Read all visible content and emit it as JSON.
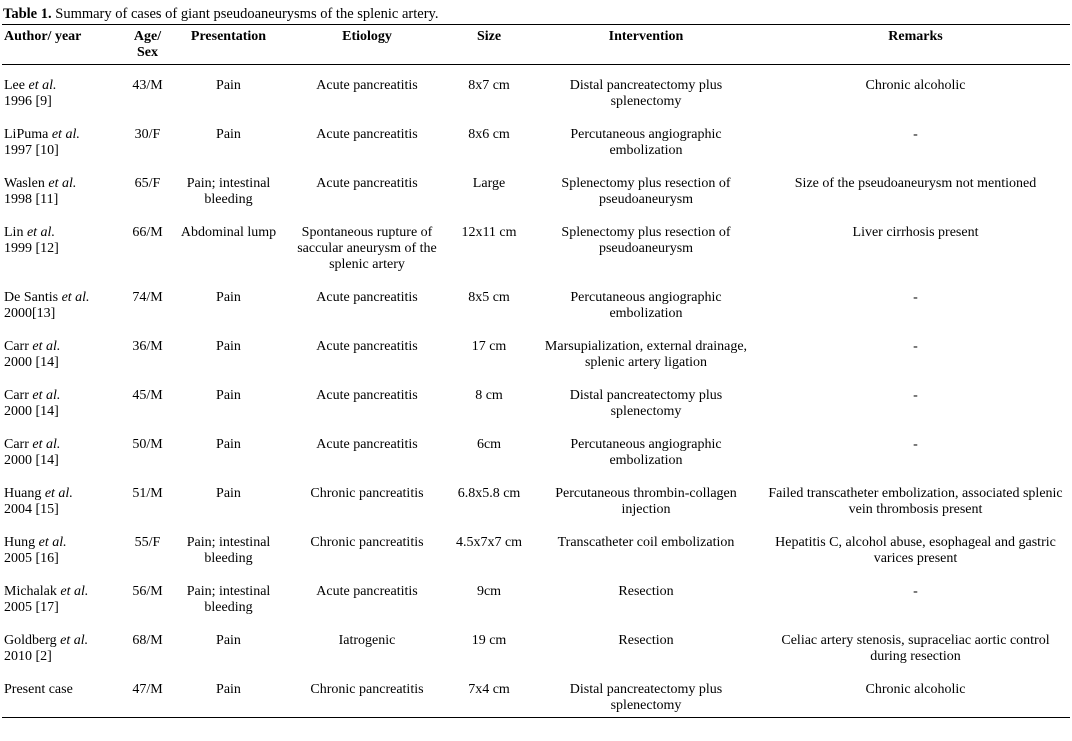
{
  "colors": {
    "text": "#000000",
    "background": "#ffffff",
    "rule": "#000000"
  },
  "title": {
    "label": "Table 1.",
    "text": "Summary of cases of giant pseudoaneurysms of the splenic artery."
  },
  "columns": [
    "Author/ year",
    "Age/ Sex",
    "Presentation",
    "Etiology",
    "Size",
    "Intervention",
    "Remarks"
  ],
  "rows": [
    {
      "author_name": "Lee",
      "author_etal": "et al.",
      "author_year": "1996 [9]",
      "age_sex": "43/M",
      "presentation": "Pain",
      "etiology": "Acute pancreatitis",
      "size": "8x7 cm",
      "intervention": "Distal pancreatectomy plus splenectomy",
      "remarks": "Chronic alcoholic"
    },
    {
      "author_name": "LiPuma",
      "author_etal": "et al.",
      "author_year": "1997 [10]",
      "age_sex": "30/F",
      "presentation": "Pain",
      "etiology": "Acute pancreatitis",
      "size": "8x6 cm",
      "intervention": "Percutaneous angiographic embolization",
      "remarks": "-"
    },
    {
      "author_name": "Waslen",
      "author_etal": "et al.",
      "author_year": "1998 [11]",
      "age_sex": "65/F",
      "presentation": "Pain; intestinal bleeding",
      "etiology": "Acute pancreatitis",
      "size": "Large",
      "intervention": "Splenectomy plus resection of pseudoaneurysm",
      "remarks": "Size of the pseudoaneurysm not mentioned"
    },
    {
      "author_name": "Lin",
      "author_etal": "et al.",
      "author_year": "1999 [12]",
      "age_sex": "66/M",
      "presentation": "Abdominal lump",
      "etiology": "Spontaneous rupture of saccular aneurysm of the splenic artery",
      "size": "12x11 cm",
      "intervention": "Splenectomy plus resection of pseudoaneurysm",
      "remarks": "Liver cirrhosis present"
    },
    {
      "author_name": "De Santis",
      "author_etal": "et al.",
      "author_year": "2000[13]",
      "age_sex": "74/M",
      "presentation": "Pain",
      "etiology": "Acute pancreatitis",
      "size": "8x5 cm",
      "intervention": "Percutaneous angiographic embolization",
      "remarks": "-"
    },
    {
      "author_name": "Carr",
      "author_etal": "et al.",
      "author_year": "2000 [14]",
      "age_sex": "36/M",
      "presentation": "Pain",
      "etiology": "Acute pancreatitis",
      "size": "17 cm",
      "intervention": "Marsupialization, external drainage, splenic artery ligation",
      "remarks": "-"
    },
    {
      "author_name": "Carr",
      "author_etal": "et al.",
      "author_year": "2000 [14]",
      "age_sex": "45/M",
      "presentation": "Pain",
      "etiology": "Acute pancreatitis",
      "size": "8 cm",
      "intervention": "Distal pancreatectomy plus splenectomy",
      "remarks": "-"
    },
    {
      "author_name": "Carr",
      "author_etal": "et al.",
      "author_year": "2000 [14]",
      "age_sex": "50/M",
      "presentation": "Pain",
      "etiology": "Acute pancreatitis",
      "size": "6cm",
      "intervention": "Percutaneous angiographic embolization",
      "remarks": "-"
    },
    {
      "author_name": "Huang",
      "author_etal": "et al.",
      "author_year": "2004 [15]",
      "age_sex": "51/M",
      "presentation": "Pain",
      "etiology": "Chronic pancreatitis",
      "size": "6.8x5.8 cm",
      "intervention": "Percutaneous thrombin-collagen injection",
      "remarks": "Failed transcatheter embolization, associated splenic vein thrombosis present"
    },
    {
      "author_name": "Hung",
      "author_etal": "et al.",
      "author_year": "2005 [16]",
      "age_sex": "55/F",
      "presentation": "Pain; intestinal bleeding",
      "etiology": "Chronic pancreatitis",
      "size": "4.5x7x7 cm",
      "intervention": "Transcatheter coil embolization",
      "remarks": "Hepatitis C, alcohol abuse, esophageal and gastric varices present"
    },
    {
      "author_name": "Michalak",
      "author_etal": "et al.",
      "author_year": "2005 [17]",
      "age_sex": "56/M",
      "presentation": "Pain; intestinal bleeding",
      "etiology": "Acute pancreatitis",
      "size": "9cm",
      "intervention": "Resection",
      "remarks": "-"
    },
    {
      "author_name": "Goldberg",
      "author_etal": "et al.",
      "author_year": "2010 [2]",
      "age_sex": "68/M",
      "presentation": "Pain",
      "etiology": "Iatrogenic",
      "size": "19 cm",
      "intervention": "Resection",
      "remarks": "Celiac artery stenosis, supraceliac aortic control during resection"
    },
    {
      "author_name": "Present case",
      "author_etal": "",
      "author_year": "",
      "age_sex": "47/M",
      "presentation": "Pain",
      "etiology": "Chronic pancreatitis",
      "size": "7x4 cm",
      "intervention": "Distal pancreatectomy plus splenectomy",
      "remarks": "Chronic alcoholic"
    }
  ]
}
